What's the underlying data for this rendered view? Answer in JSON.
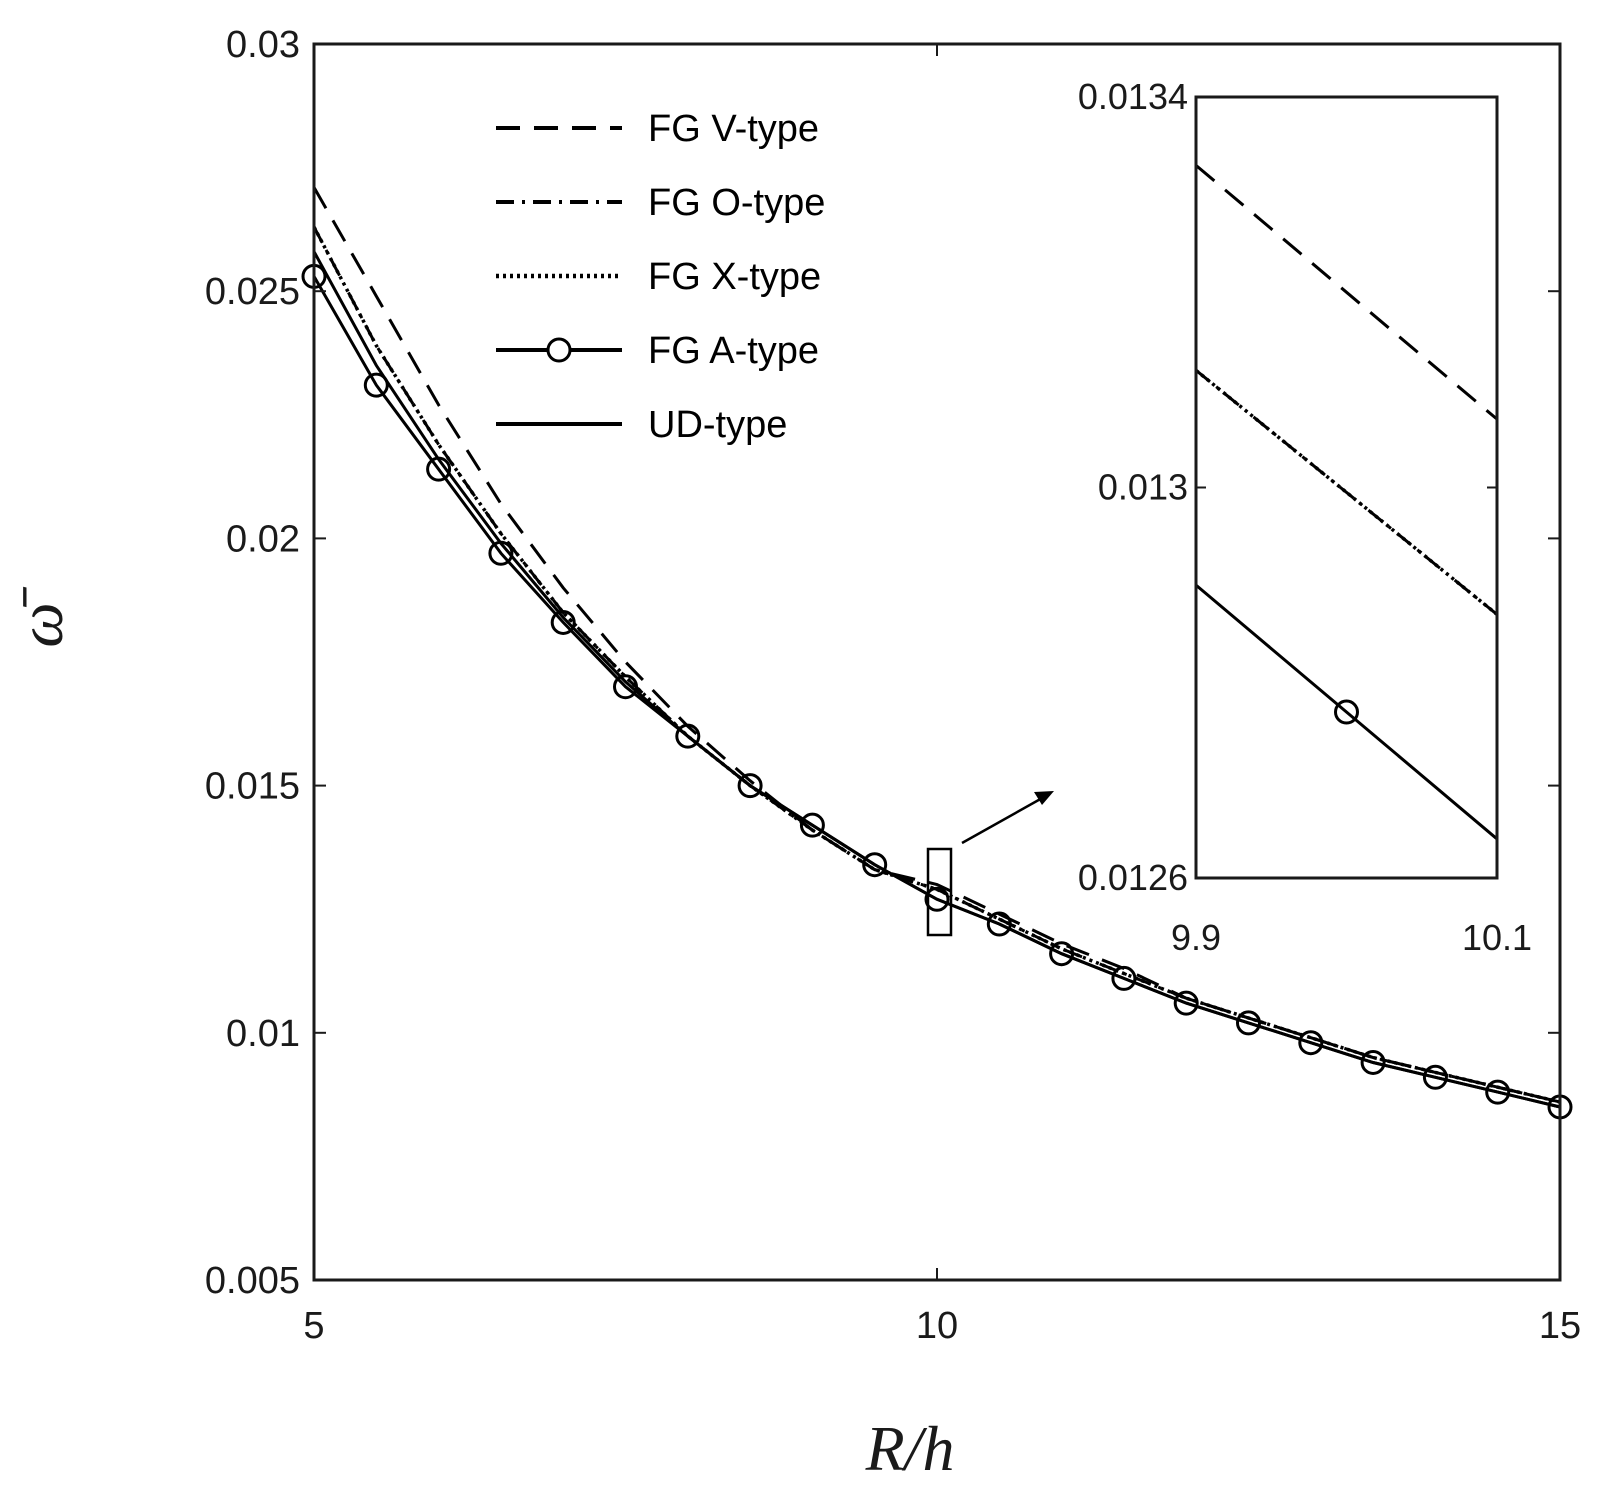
{
  "chart_data": [
    {
      "type": "line",
      "role": "main",
      "xlabel": "R/h",
      "ylabel": "ω̄",
      "xlim": [
        5,
        15
      ],
      "ylim": [
        0.005,
        0.03
      ],
      "xticks": [
        5,
        10,
        15
      ],
      "xtick_labels": [
        "5",
        "10",
        "15"
      ],
      "yticks": [
        0.005,
        0.01,
        0.015,
        0.02,
        0.025,
        0.03
      ],
      "ytick_labels": [
        "0.005",
        "0.01",
        "0.015",
        "0.02",
        "0.025",
        "0.03"
      ],
      "x": [
        5,
        5.5,
        6,
        6.5,
        7,
        7.5,
        8,
        8.5,
        9,
        9.5,
        10,
        10.5,
        11,
        11.5,
        12,
        12.5,
        13,
        13.5,
        14,
        14.5,
        15
      ],
      "series": [
        {
          "name": "FG V-type",
          "style": "dashed",
          "color": "#000000",
          "values": [
            0.0271,
            0.0249,
            0.0227,
            0.0207,
            0.019,
            0.0175,
            0.0162,
            0.0151,
            0.0141,
            0.0133,
            0.013,
            0.0124,
            0.0118,
            0.0113,
            0.0107,
            0.0103,
            0.0099,
            0.0095,
            0.0092,
            0.0089,
            0.0086
          ]
        },
        {
          "name": "FG O-type",
          "style": "dashdot",
          "color": "#000000",
          "values": [
            0.0263,
            0.0239,
            0.0219,
            0.0201,
            0.0185,
            0.0172,
            0.016,
            0.015,
            0.0141,
            0.0133,
            0.0129,
            0.0123,
            0.0117,
            0.0112,
            0.0107,
            0.0103,
            0.0099,
            0.0095,
            0.0092,
            0.0089,
            0.0086
          ]
        },
        {
          "name": "FG X-type",
          "style": "dotted",
          "color": "#000000",
          "values": [
            0.0263,
            0.0239,
            0.0219,
            0.0201,
            0.0185,
            0.0172,
            0.016,
            0.015,
            0.0141,
            0.0133,
            0.0129,
            0.0123,
            0.0117,
            0.0112,
            0.0107,
            0.0103,
            0.0099,
            0.0095,
            0.0092,
            0.0089,
            0.0086
          ]
        },
        {
          "name": "FG A-type",
          "style": "solid-circle",
          "color": "#000000",
          "values": [
            0.0253,
            0.0231,
            0.0214,
            0.0197,
            0.0183,
            0.017,
            0.016,
            0.015,
            0.0142,
            0.0134,
            0.0127,
            0.0122,
            0.0116,
            0.0111,
            0.0106,
            0.0102,
            0.0098,
            0.0094,
            0.0091,
            0.0088,
            0.0085
          ]
        },
        {
          "name": "UD-type",
          "style": "solid",
          "color": "#000000",
          "values": [
            0.0258,
            0.0235,
            0.0216,
            0.0199,
            0.0184,
            0.0171,
            0.016,
            0.015,
            0.0142,
            0.0134,
            0.0127,
            0.0122,
            0.0116,
            0.0111,
            0.0106,
            0.0102,
            0.0098,
            0.0094,
            0.0091,
            0.0088,
            0.0085
          ]
        }
      ],
      "legend_position": "top-center",
      "annotations": [
        "zoom box at R/h = 10 with arrow to inset"
      ]
    },
    {
      "type": "line",
      "role": "inset",
      "xlim": [
        9.9,
        10.1
      ],
      "ylim": [
        0.0126,
        0.0134
      ],
      "xtick_labels": [
        "9.9",
        "10.1"
      ],
      "ytick_labels": [
        "0.0134",
        "0.013",
        "0.0126"
      ],
      "series": [
        {
          "name": "FG V-type",
          "x": [
            9.9,
            10.1
          ],
          "values": [
            0.01333,
            0.01307
          ]
        },
        {
          "name": "FG O-type",
          "x": [
            9.9,
            10.1
          ],
          "values": [
            0.01312,
            0.01287
          ]
        },
        {
          "name": "FG X-type",
          "x": [
            9.9,
            10.1
          ],
          "values": [
            0.01312,
            0.01287
          ]
        },
        {
          "name": "FG A-type",
          "x": [
            9.9,
            10.1
          ],
          "values": [
            0.0129,
            0.01264
          ],
          "marker_x": 10.0
        }
      ]
    }
  ]
}
